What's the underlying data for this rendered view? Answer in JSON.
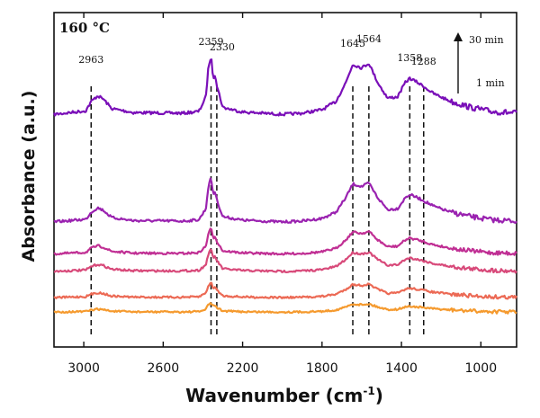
{
  "chart_data": {
    "type": "line",
    "title": "",
    "temperature_label": "160 °C",
    "xlabel_main": "Wavenumber (cm",
    "xlabel_sup": "-1",
    "xlabel_tail": ")",
    "ylabel": "Absorbance (a.u.)",
    "xlim": [
      3150,
      820
    ],
    "x_reversed": true,
    "y_ticks_shown": false,
    "x_ticks": [
      3000,
      2600,
      2200,
      1800,
      1400,
      1000
    ],
    "time_arrow": {
      "top_label": "30 min",
      "bottom_label": "1 min"
    },
    "peak_lines": [
      {
        "wavenumber": 2963,
        "label": "2963"
      },
      {
        "wavenumber": 2359,
        "label": "2359"
      },
      {
        "wavenumber": 2330,
        "label": "2330"
      },
      {
        "wavenumber": 1645,
        "label": "1645"
      },
      {
        "wavenumber": 1564,
        "label": "1564"
      },
      {
        "wavenumber": 1358,
        "label": "1358"
      },
      {
        "wavenumber": 1288,
        "label": "1288"
      }
    ],
    "series_keypoints": [
      [
        3150,
        0.0
      ],
      [
        2990,
        0.06
      ],
      [
        2963,
        0.22
      ],
      [
        2930,
        0.32
      ],
      [
        2900,
        0.26
      ],
      [
        2860,
        0.1
      ],
      [
        2750,
        0.03
      ],
      [
        2500,
        0.02
      ],
      [
        2420,
        0.05
      ],
      [
        2385,
        0.3
      ],
      [
        2372,
        0.82
      ],
      [
        2359,
        1.0
      ],
      [
        2348,
        0.62
      ],
      [
        2338,
        0.7
      ],
      [
        2330,
        0.5
      ],
      [
        2300,
        0.12
      ],
      [
        2200,
        0.04
      ],
      [
        2000,
        0.0
      ],
      [
        1900,
        0.02
      ],
      [
        1800,
        0.08
      ],
      [
        1730,
        0.22
      ],
      [
        1680,
        0.55
      ],
      [
        1645,
        0.86
      ],
      [
        1600,
        0.8
      ],
      [
        1564,
        0.88
      ],
      [
        1520,
        0.55
      ],
      [
        1470,
        0.28
      ],
      [
        1420,
        0.3
      ],
      [
        1380,
        0.55
      ],
      [
        1358,
        0.62
      ],
      [
        1320,
        0.55
      ],
      [
        1288,
        0.48
      ],
      [
        1240,
        0.36
      ],
      [
        1150,
        0.22
      ],
      [
        1050,
        0.12
      ],
      [
        950,
        0.05
      ],
      [
        820,
        0.02
      ]
    ],
    "series": [
      {
        "name": "30 min",
        "color": "#7a0fb8",
        "baseline": 3.5,
        "scale": 2.0
      },
      {
        "name": "",
        "color": "#9a22b0",
        "baseline": 7.2,
        "scale": 1.52
      },
      {
        "name": "",
        "color": "#c02f94",
        "baseline": 8.3,
        "scale": 0.88
      },
      {
        "name": "",
        "color": "#d84a7a",
        "baseline": 8.9,
        "scale": 0.75
      },
      {
        "name": "",
        "color": "#ec6a55",
        "baseline": 9.8,
        "scale": 0.52
      },
      {
        "name": "1 min",
        "color": "#f59a2e",
        "baseline": 10.3,
        "scale": 0.32
      }
    ]
  }
}
